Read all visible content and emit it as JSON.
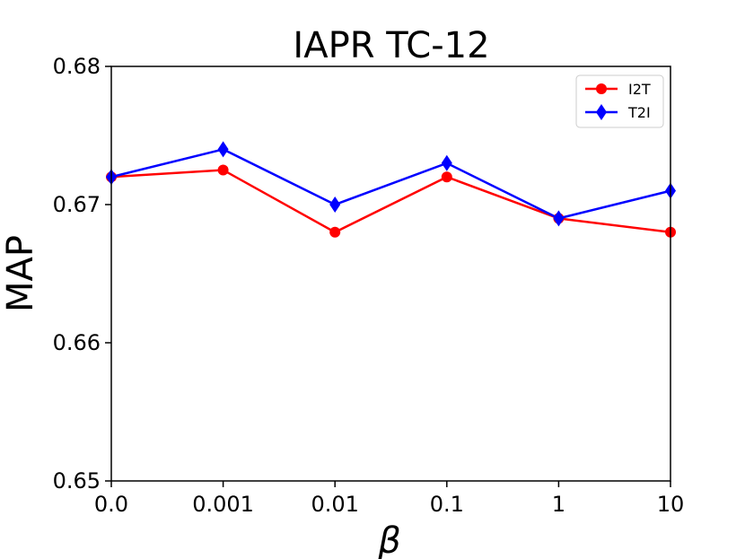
{
  "chart_data": {
    "type": "line",
    "title": "IAPR TC-12",
    "xlabel": "β",
    "ylabel": "MAP",
    "categories": [
      "0.0",
      "0.001",
      "0.01",
      "0.1",
      "1",
      "10"
    ],
    "ylim": [
      0.65,
      0.68
    ],
    "yticks": [
      "0.65",
      "0.66",
      "0.67",
      "0.68"
    ],
    "ytick_values": [
      0.65,
      0.66,
      0.67,
      0.68
    ],
    "legend_position": "top-right",
    "series": [
      {
        "name": "I2T",
        "color": "#ff0000",
        "marker": "circle",
        "values": [
          0.672,
          0.6725,
          0.668,
          0.672,
          0.669,
          0.668
        ]
      },
      {
        "name": "T2I",
        "color": "#0000ff",
        "marker": "diamond",
        "values": [
          0.672,
          0.674,
          0.67,
          0.673,
          0.669,
          0.671
        ]
      }
    ]
  }
}
